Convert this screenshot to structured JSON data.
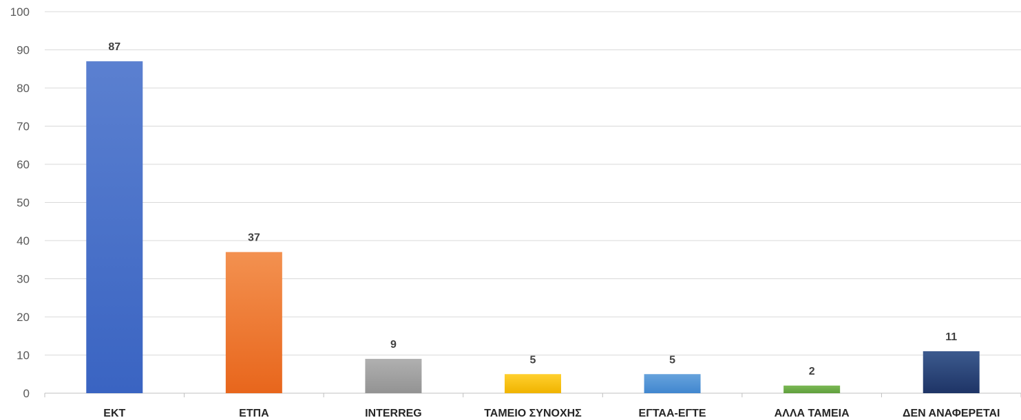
{
  "chart_data": {
    "type": "bar",
    "title": "",
    "xlabel": "",
    "ylabel": "",
    "ylim": [
      0,
      100
    ],
    "yticks": [
      0,
      10,
      20,
      30,
      40,
      50,
      60,
      70,
      80,
      90,
      100
    ],
    "grid": true,
    "categories": [
      "ΕΚΤ",
      "ΕΤΠΑ",
      "INTERREG",
      "ΤΑΜΕΙΟ ΣΥΝΟΧΗΣ",
      "ΕΓΤΑΑ-ΕΓΤΕ",
      "ΑΛΛΑ ΤΑΜΕΙΑ",
      "ΔΕΝ ΑΝΑΦΕΡΕΤΑΙ"
    ],
    "values": [
      87,
      37,
      9,
      5,
      5,
      2,
      11
    ],
    "colors": [
      [
        "#5b80d0",
        "#3a64c2"
      ],
      [
        "#f39150",
        "#e8661c"
      ],
      [
        "#b0b0b0",
        "#939393"
      ],
      [
        "#ffcf2e",
        "#f0b400"
      ],
      [
        "#66a2dc",
        "#4187cf"
      ],
      [
        "#7cb956",
        "#5f9f3c"
      ],
      [
        "#3c5a8e",
        "#1e3466"
      ]
    ]
  }
}
